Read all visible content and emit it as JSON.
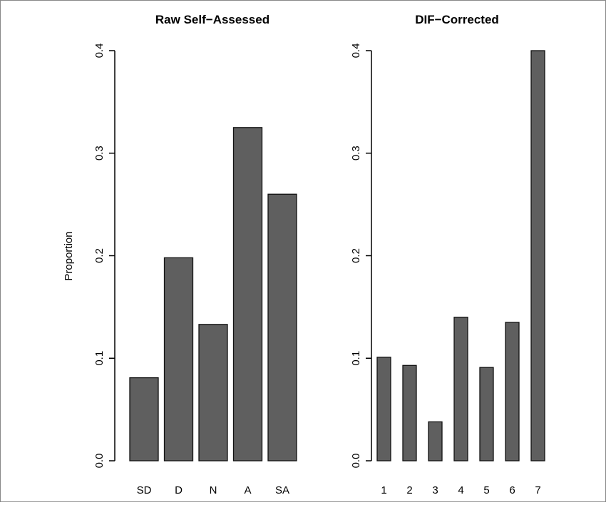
{
  "chart_data": [
    {
      "type": "bar",
      "title": "Raw Self−Assessed",
      "ylabel": "Proportion",
      "xlabel": "",
      "categories": [
        "SD",
        "D",
        "N",
        "A",
        "SA"
      ],
      "values": [
        0.081,
        0.198,
        0.133,
        0.325,
        0.26
      ],
      "ylim": [
        0,
        0.4
      ],
      "yticks": [
        "0.0",
        "0.1",
        "0.2",
        "0.3",
        "0.4"
      ],
      "grid": false,
      "bar_color": "#5f5f5f"
    },
    {
      "type": "bar",
      "title": "DIF−Corrected",
      "ylabel": "",
      "xlabel": "",
      "categories": [
        "1",
        "2",
        "3",
        "4",
        "5",
        "6",
        "7"
      ],
      "values": [
        0.101,
        0.093,
        0.038,
        0.14,
        0.091,
        0.135,
        0.4
      ],
      "ylim": [
        0,
        0.4
      ],
      "yticks": [
        "0.0",
        "0.1",
        "0.2",
        "0.3",
        "0.4"
      ],
      "grid": false,
      "bar_color": "#5f5f5f"
    }
  ]
}
